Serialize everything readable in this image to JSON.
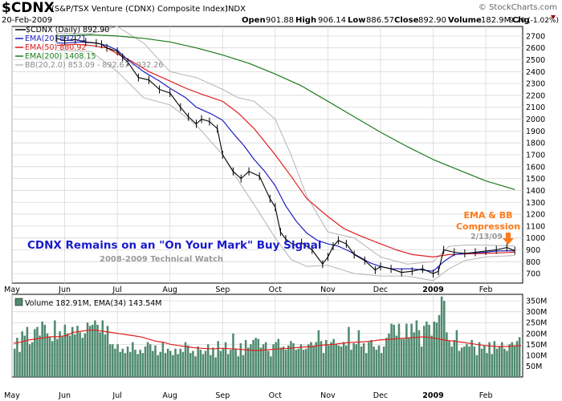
{
  "header": {
    "symbol": "$CDNX",
    "name": "(S&P/TSX Venture (CDNX) Composite Index)",
    "exchange": "INDX",
    "watermark": "© StockCharts.com",
    "date": "20-Feb-2009",
    "open_label": "Open",
    "open": "901.88",
    "high_label": "High",
    "high": "906.14",
    "low_label": "Low",
    "low": "886.57",
    "close_label": "Close",
    "close": "892.90",
    "volume_label": "Volume",
    "volume": "182.9M",
    "chg_label": "Chg",
    "chg": "-9.20 (-1.02%)"
  },
  "legend": [
    {
      "text": "$CDNX (Daily) 892.90",
      "color": "#000000"
    },
    {
      "text": "EMA(20) 892.21",
      "color": "#1f1fbf"
    },
    {
      "text": "EMA(50) 880.92",
      "color": "#e02020"
    },
    {
      "text": "EMA(200) 1408.15",
      "color": "#1a7a1a"
    },
    {
      "text": "BB(20,2.0) 853.09 - 892.67 - 932.26",
      "color": "#888888"
    }
  ],
  "volume_legend": "Volume 182.91M, EMA(34) 143.54M",
  "annotations": {
    "title": "CDNX Remains on an \"On Your Mark\" Buy Signal",
    "subtitle": "2008-2009 Technical Watch",
    "callout_line1": "EMA & BB",
    "callout_line2": "Compression",
    "callout_date": "2/13/09"
  },
  "colors": {
    "price": "#000000",
    "ema20": "#1f1fbf",
    "ema50": "#e02020",
    "ema200": "#1a7a1a",
    "bb": "#b4b4b4",
    "volume_bar": "#4f8a6e",
    "volume_ema": "#e02020",
    "callout": "#ff7a1a",
    "title": "#1a1acc",
    "grid": "#d8d8d8"
  },
  "chart_data": {
    "type": "line",
    "months": [
      "May",
      "Jun",
      "Jul",
      "Aug",
      "Sep",
      "Oct",
      "Nov",
      "Dec",
      "2009",
      "Feb"
    ],
    "price_ticks": [
      700,
      800,
      900,
      1000,
      1100,
      1200,
      1300,
      1400,
      1500,
      1600,
      1700,
      1800,
      1900,
      2000,
      2100,
      2200,
      2300,
      2400,
      2500,
      2600,
      2700
    ],
    "price_ylim": [
      620,
      2780
    ],
    "volume_ticks": [
      "50M",
      "100M",
      "150M",
      "200M",
      "250M",
      "300M",
      "350M"
    ],
    "volume_ylim": [
      0,
      380
    ],
    "x_range": [
      0,
      9.7
    ],
    "series": [
      {
        "name": "$CDNX (Daily)",
        "key": "close",
        "x": [
          0.85,
          1.0,
          1.2,
          1.4,
          1.6,
          1.7,
          1.8,
          2.0,
          2.1,
          2.2,
          2.4,
          2.6,
          2.8,
          3.0,
          3.2,
          3.35,
          3.5,
          3.6,
          3.75,
          3.9,
          4.0,
          4.2,
          4.35,
          4.5,
          4.7,
          4.9,
          5.0,
          5.1,
          5.2,
          5.35,
          5.5,
          5.7,
          5.9,
          6.0,
          6.1,
          6.2,
          6.35,
          6.5,
          6.7,
          6.9,
          7.0,
          7.2,
          7.4,
          7.6,
          7.8,
          8.0,
          8.1,
          8.2,
          8.4,
          8.6,
          8.8,
          9.0,
          9.2,
          9.4,
          9.55
        ],
        "values": [
          2680,
          2660,
          2670,
          2650,
          2640,
          2630,
          2600,
          2570,
          2520,
          2480,
          2350,
          2330,
          2250,
          2220,
          2100,
          2020,
          1960,
          2000,
          1980,
          1920,
          1700,
          1560,
          1500,
          1560,
          1520,
          1330,
          1260,
          1050,
          990,
          940,
          960,
          900,
          780,
          840,
          930,
          980,
          950,
          860,
          810,
          730,
          760,
          740,
          710,
          720,
          740,
          700,
          720,
          900,
          880,
          870,
          880,
          890,
          900,
          920,
          893
        ]
      },
      {
        "name": "EMA(20)",
        "key": "ema20",
        "x": [
          0.85,
          1.0,
          1.3,
          1.6,
          1.8,
          2.0,
          2.2,
          2.5,
          2.8,
          3.0,
          3.3,
          3.5,
          3.8,
          4.0,
          4.2,
          4.4,
          4.6,
          4.8,
          5.0,
          5.2,
          5.4,
          5.6,
          5.8,
          6.0,
          6.2,
          6.4,
          6.6,
          6.8,
          7.0,
          7.2,
          7.4,
          7.6,
          7.8,
          8.0,
          8.2,
          8.4,
          8.6,
          8.8,
          9.0,
          9.2,
          9.4,
          9.55
        ],
        "values": [
          2640,
          2640,
          2650,
          2640,
          2620,
          2580,
          2500,
          2400,
          2320,
          2260,
          2180,
          2100,
          2040,
          1990,
          1880,
          1780,
          1660,
          1560,
          1440,
          1270,
          1140,
          1040,
          980,
          950,
          930,
          890,
          840,
          790,
          760,
          740,
          740,
          740,
          730,
          720,
          800,
          860,
          870,
          875,
          880,
          890,
          892,
          892
        ]
      },
      {
        "name": "EMA(50)",
        "key": "ema50",
        "x": [
          0.85,
          1.2,
          1.5,
          1.8,
          2.0,
          2.3,
          2.6,
          3.0,
          3.3,
          3.6,
          4.0,
          4.3,
          4.6,
          5.0,
          5.3,
          5.6,
          6.0,
          6.3,
          6.6,
          7.0,
          7.3,
          7.6,
          8.0,
          8.3,
          8.6,
          9.0,
          9.3,
          9.55
        ],
        "values": [
          2620,
          2630,
          2620,
          2600,
          2550,
          2480,
          2400,
          2320,
          2260,
          2210,
          2150,
          2050,
          1920,
          1700,
          1520,
          1330,
          1180,
          1080,
          1020,
          950,
          900,
          860,
          840,
          860,
          865,
          870,
          875,
          881
        ]
      },
      {
        "name": "EMA(200)",
        "key": "ema200",
        "x": [
          0.85,
          1.5,
          2.0,
          2.5,
          3.0,
          3.5,
          4.0,
          4.5,
          5.0,
          5.5,
          6.0,
          6.5,
          7.0,
          7.5,
          8.0,
          8.5,
          9.0,
          9.55
        ],
        "values": [
          2700,
          2710,
          2700,
          2680,
          2650,
          2600,
          2540,
          2470,
          2380,
          2280,
          2150,
          2020,
          1890,
          1770,
          1660,
          1570,
          1480,
          1408
        ]
      },
      {
        "name": "BB upper",
        "key": "bb_upper",
        "x": [
          0.85,
          1.5,
          2.0,
          2.5,
          3.0,
          3.5,
          4.0,
          4.3,
          4.6,
          5.0,
          5.3,
          5.6,
          6.0,
          6.5,
          7.0,
          7.5,
          8.0,
          8.3,
          8.6,
          9.0,
          9.55
        ],
        "values": [
          2720,
          2720,
          2780,
          2640,
          2400,
          2350,
          2250,
          2180,
          2150,
          2000,
          1700,
          1350,
          1050,
          1000,
          840,
          780,
          800,
          930,
          940,
          940,
          932
        ]
      },
      {
        "name": "BB lower",
        "key": "bb_lower",
        "x": [
          0.85,
          1.5,
          2.0,
          2.5,
          3.0,
          3.5,
          4.0,
          4.3,
          4.6,
          5.0,
          5.3,
          5.6,
          6.0,
          6.5,
          7.0,
          7.5,
          8.0,
          8.3,
          8.6,
          9.0,
          9.55
        ],
        "values": [
          2580,
          2570,
          2400,
          2180,
          2120,
          1950,
          1700,
          1480,
          1280,
          1000,
          820,
          760,
          770,
          700,
          680,
          680,
          640,
          740,
          810,
          840,
          853
        ]
      }
    ],
    "volume": {
      "bars": [
        130,
        180,
        115,
        210,
        190,
        230,
        150,
        160,
        220,
        230,
        190,
        255,
        240,
        200,
        185,
        165,
        260,
        175,
        210,
        185,
        240,
        200,
        190,
        230,
        195,
        235,
        205,
        180,
        200,
        250,
        235,
        240,
        260,
        240,
        205,
        260,
        195,
        235,
        150,
        150,
        130,
        150,
        115,
        130,
        110,
        140,
        115,
        160,
        125,
        105,
        125,
        110,
        140,
        160,
        150,
        120,
        145,
        100,
        115,
        160,
        110,
        130,
        120,
        100,
        130,
        105,
        130,
        115,
        160,
        145,
        110,
        120,
        95,
        140,
        125,
        105,
        120,
        150,
        100,
        135,
        90,
        165,
        120,
        130,
        160,
        105,
        125,
        200,
        130,
        95,
        155,
        100,
        170,
        135,
        150,
        170,
        180,
        175,
        135,
        150,
        160,
        120,
        95,
        150,
        160,
        175,
        135,
        140,
        125,
        145,
        165,
        155,
        125,
        130,
        150,
        125,
        130,
        150,
        160,
        145,
        160,
        215,
        165,
        110,
        170,
        145,
        160,
        175,
        150,
        145,
        140,
        160,
        145,
        230,
        125,
        155,
        150,
        215,
        140,
        155,
        110,
        160,
        170,
        140,
        125,
        145,
        110,
        140,
        180,
        200,
        245,
        240,
        190,
        245,
        175,
        175,
        245,
        180,
        245,
        205,
        260,
        215,
        140,
        235,
        255,
        240,
        190,
        255,
        250,
        285,
        370,
        350,
        205,
        165,
        140,
        170,
        215,
        120,
        135,
        140,
        150,
        140,
        170,
        140,
        100,
        160,
        130,
        145,
        110,
        160,
        105,
        165,
        130,
        140,
        160,
        130,
        120,
        150,
        160,
        145,
        165,
        183
      ],
      "ema": [
        155,
        160,
        170,
        175,
        180,
        185,
        185,
        190,
        205,
        210,
        215,
        215,
        210,
        205,
        200,
        195,
        190,
        185,
        175,
        165,
        160,
        150,
        145,
        140,
        135,
        132,
        130,
        130,
        132,
        130,
        128,
        125,
        122,
        122,
        125,
        128,
        130,
        132,
        135,
        138,
        140,
        145,
        148,
        150,
        155,
        158,
        160,
        162,
        165,
        170,
        172,
        175,
        178,
        180,
        182,
        185,
        180,
        175,
        168,
        165,
        160,
        155,
        150,
        145,
        142,
        140,
        140,
        143,
        143.5
      ]
    }
  }
}
